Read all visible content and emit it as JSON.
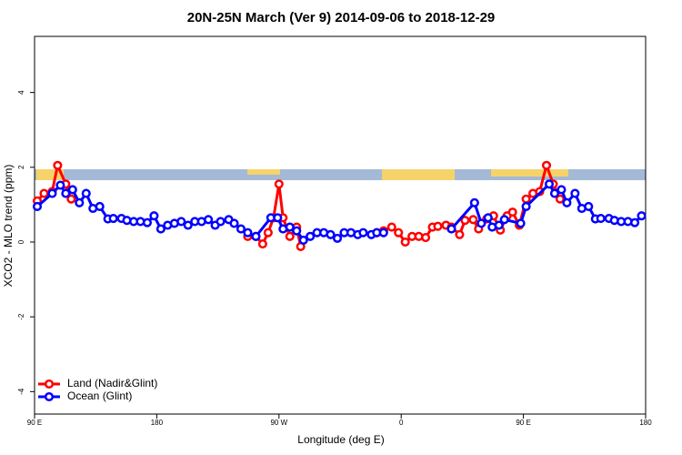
{
  "chart_data": {
    "type": "line",
    "title": "20N-25N March (Ver 9)   2014-09-06 to 2018-12-29",
    "xlabel": "Longitude (deg E)",
    "ylabel": "XCO2 - MLO trend (ppm)",
    "xlim": [
      90,
      540
    ],
    "ylim": [
      -4.6,
      5.5
    ],
    "xticks": [
      {
        "value": 90,
        "label": "90 E"
      },
      180,
      {
        "value": 270,
        "label": "90 W"
      },
      {
        "value": 360,
        "label": "0"
      },
      {
        "value": 450,
        "label": "90 E"
      },
      {
        "value": 540,
        "label": "180"
      }
    ],
    "yticks": [
      -4,
      -2,
      0,
      2,
      4
    ],
    "legend": "bottom-left",
    "series": [
      {
        "name": "Land (Nadir&Glint)",
        "color": "#ff0000",
        "x": [
          92,
          97,
          103,
          107,
          113,
          117,
          200,
          247,
          253,
          258,
          262,
          266,
          270,
          273,
          278,
          283,
          286,
          300,
          342,
          347,
          353,
          358,
          363,
          368,
          373,
          378,
          383,
          387,
          393,
          397,
          403,
          407,
          413,
          417,
          423,
          428,
          433,
          438,
          442,
          447,
          452,
          457,
          462,
          467,
          472,
          477
        ],
        "values": [
          1.1,
          1.3,
          1.35,
          2.05,
          1.55,
          1.15,
          null,
          0.15,
          0.15,
          -0.05,
          0.25,
          0.65,
          1.55,
          0.65,
          0.15,
          0.4,
          -0.12,
          null,
          0.25,
          0.3,
          0.4,
          0.25,
          0.0,
          0.15,
          0.15,
          0.12,
          0.4,
          0.42,
          0.45,
          0.4,
          0.2,
          0.58,
          0.6,
          0.35,
          0.62,
          0.7,
          0.32,
          0.7,
          0.8,
          0.45,
          1.15,
          1.3,
          1.35,
          2.05,
          1.55,
          1.15
        ]
      },
      {
        "name": "Ocean (Glint)",
        "color": "#0000ff",
        "x": [
          92,
          103,
          109,
          113,
          118,
          123,
          128,
          133,
          138,
          144,
          148,
          154,
          158,
          163,
          168,
          173,
          178,
          183,
          188,
          193,
          198,
          203,
          208,
          213,
          218,
          223,
          227,
          233,
          237,
          242,
          247,
          253,
          264,
          269,
          273,
          278,
          283,
          288,
          293,
          298,
          303,
          308,
          313,
          318,
          323,
          328,
          332,
          338,
          342,
          347,
          370,
          397,
          414,
          419,
          424,
          427,
          432,
          436,
          448,
          452,
          469,
          473,
          478,
          482,
          488,
          493,
          498,
          503,
          507,
          513,
          517,
          522,
          527,
          532,
          537
        ],
        "values": [
          0.95,
          1.3,
          1.52,
          1.3,
          1.4,
          1.05,
          1.3,
          0.9,
          0.95,
          0.62,
          0.63,
          0.63,
          0.58,
          0.55,
          0.55,
          0.52,
          0.7,
          0.35,
          0.45,
          0.5,
          0.55,
          0.45,
          0.55,
          0.55,
          0.6,
          0.45,
          0.55,
          0.6,
          0.5,
          0.35,
          0.25,
          0.15,
          0.65,
          0.65,
          0.35,
          0.4,
          0.3,
          0.05,
          0.15,
          0.25,
          0.25,
          0.2,
          0.1,
          0.25,
          0.25,
          0.2,
          0.25,
          0.2,
          0.25,
          0.25,
          null,
          0.35,
          1.05,
          0.5,
          0.65,
          0.4,
          0.45,
          0.6,
          0.5,
          0.95,
          1.55,
          1.3,
          1.4,
          1.05,
          1.3,
          0.9,
          0.95,
          0.62,
          0.63,
          0.63,
          0.58,
          0.55,
          0.55,
          0.52,
          0.7
        ]
      }
    ]
  }
}
